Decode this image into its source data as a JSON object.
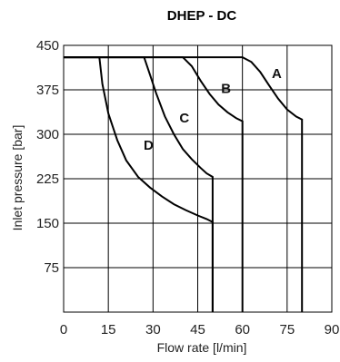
{
  "chart_data": {
    "type": "line",
    "title": "DHEP - DC",
    "xlabel": "Flow rate [l/min]",
    "ylabel": "Inlet pressure [bar]",
    "xlim": [
      0,
      90
    ],
    "ylim": [
      0,
      450
    ],
    "xticks": [
      "0",
      "15",
      "30",
      "45",
      "60",
      "75",
      "90"
    ],
    "yticks": [
      "450",
      "375",
      "300",
      "225",
      "150",
      "75"
    ],
    "grid": true,
    "series": [
      {
        "name": "A",
        "x": [
          60,
          63,
          66,
          69,
          72,
          75,
          78,
          80,
          80
        ],
        "y": [
          430,
          422,
          405,
          382,
          360,
          342,
          330,
          325,
          0
        ]
      },
      {
        "name": "B",
        "x": [
          40,
          43,
          46,
          49,
          52,
          55,
          58,
          60,
          60
        ],
        "y": [
          430,
          415,
          390,
          368,
          350,
          337,
          327,
          322,
          0
        ]
      },
      {
        "name": "C",
        "x": [
          27,
          29,
          31,
          34,
          37,
          40,
          43,
          46,
          48,
          50,
          50
        ],
        "y": [
          430,
          400,
          370,
          330,
          300,
          275,
          258,
          243,
          234,
          228,
          0
        ]
      },
      {
        "name": "D",
        "x": [
          12,
          13,
          15,
          18,
          21,
          25,
          29,
          33,
          37,
          41,
          45,
          48,
          50,
          50
        ],
        "y": [
          430,
          385,
          335,
          290,
          256,
          228,
          210,
          195,
          182,
          172,
          163,
          157,
          152,
          0
        ]
      }
    ],
    "curve_labels": [
      {
        "text": "A",
        "x": 71.5,
        "y": 395
      },
      {
        "text": "B",
        "x": 54.5,
        "y": 370
      },
      {
        "text": "C",
        "x": 40.5,
        "y": 320
      },
      {
        "text": "D",
        "x": 28.5,
        "y": 274
      }
    ]
  }
}
